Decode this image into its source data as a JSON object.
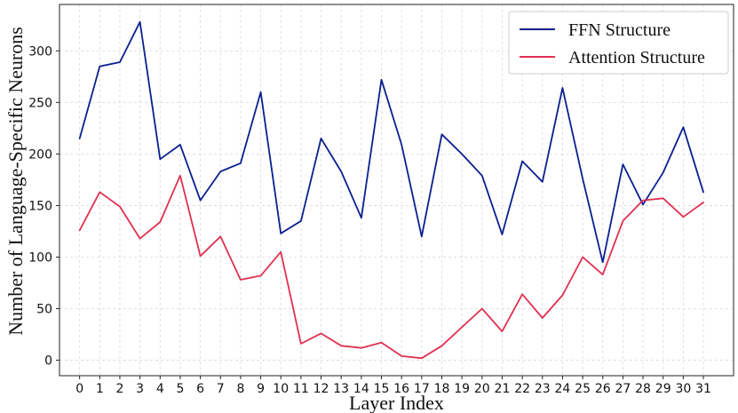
{
  "chart_data": {
    "type": "line",
    "xlabel": "Layer Index",
    "ylabel": "Number of Language-Specific Neurons",
    "x": [
      0,
      1,
      2,
      3,
      4,
      5,
      6,
      7,
      8,
      9,
      10,
      11,
      12,
      13,
      14,
      15,
      16,
      17,
      18,
      19,
      20,
      21,
      22,
      23,
      24,
      25,
      26,
      27,
      28,
      29,
      30,
      31
    ],
    "xticks": [
      0,
      1,
      2,
      3,
      4,
      5,
      6,
      7,
      8,
      9,
      10,
      11,
      12,
      13,
      14,
      15,
      16,
      17,
      18,
      19,
      20,
      21,
      22,
      23,
      24,
      25,
      26,
      27,
      28,
      29,
      30,
      31
    ],
    "yticks": [
      0,
      50,
      100,
      150,
      200,
      250,
      300
    ],
    "xlim": [
      -1,
      32.5
    ],
    "ylim": [
      -15,
      345
    ],
    "grid": true,
    "legend_position": "top-right",
    "series": [
      {
        "name": "FFN Structure",
        "color": "#0a1f8f",
        "values": [
          215,
          285,
          289,
          328,
          195,
          209,
          155,
          183,
          191,
          260,
          123,
          135,
          215,
          183,
          138,
          272,
          209,
          120,
          219,
          200,
          179,
          122,
          193,
          173,
          264,
          176,
          95,
          190,
          151,
          182,
          226,
          163
        ]
      },
      {
        "name": "Attention Structure",
        "color": "#e03050",
        "values": [
          126,
          163,
          149,
          118,
          134,
          179,
          101,
          120,
          78,
          82,
          105,
          16,
          26,
          14,
          12,
          17,
          4,
          2,
          14,
          32,
          50,
          28,
          64,
          41,
          63,
          100,
          83,
          135,
          155,
          157,
          139,
          153
        ]
      }
    ]
  }
}
